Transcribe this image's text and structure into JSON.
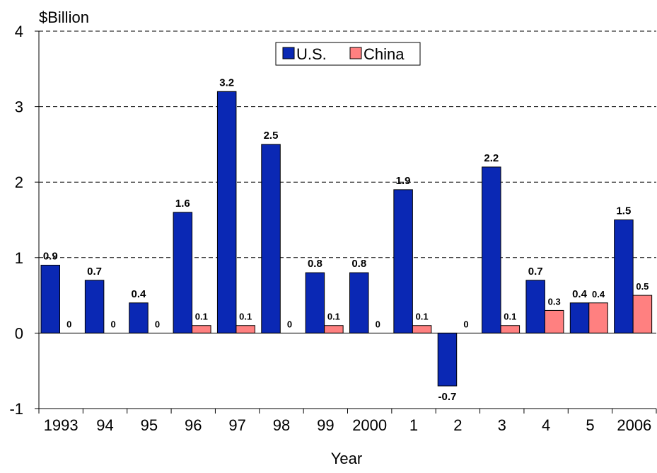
{
  "chart_data": {
    "type": "bar",
    "ylabel": "$Billion",
    "xlabel": "Year",
    "categories": [
      "1993",
      "94",
      "95",
      "96",
      "97",
      "98",
      "99",
      "2000",
      "1",
      "2",
      "3",
      "4",
      "5",
      "2006"
    ],
    "series": [
      {
        "name": "U.S.",
        "color": "#0a28b4",
        "values": [
          0.9,
          0.7,
          0.4,
          1.6,
          3.2,
          2.5,
          0.8,
          0.8,
          1.9,
          -0.7,
          2.2,
          0.7,
          0.4,
          1.5
        ]
      },
      {
        "name": "China",
        "color": "#ff8080",
        "values": [
          0,
          0,
          0,
          0.1,
          0.1,
          0,
          0.1,
          0,
          0.1,
          0,
          0.1,
          0.3,
          0.4,
          0.5
        ]
      }
    ],
    "ylim": [
      -1,
      4
    ],
    "yticks": [
      "-1",
      "0",
      "1",
      "2",
      "3",
      "4"
    ],
    "grid": "horizontal dashed",
    "legend_position": "top-center"
  }
}
